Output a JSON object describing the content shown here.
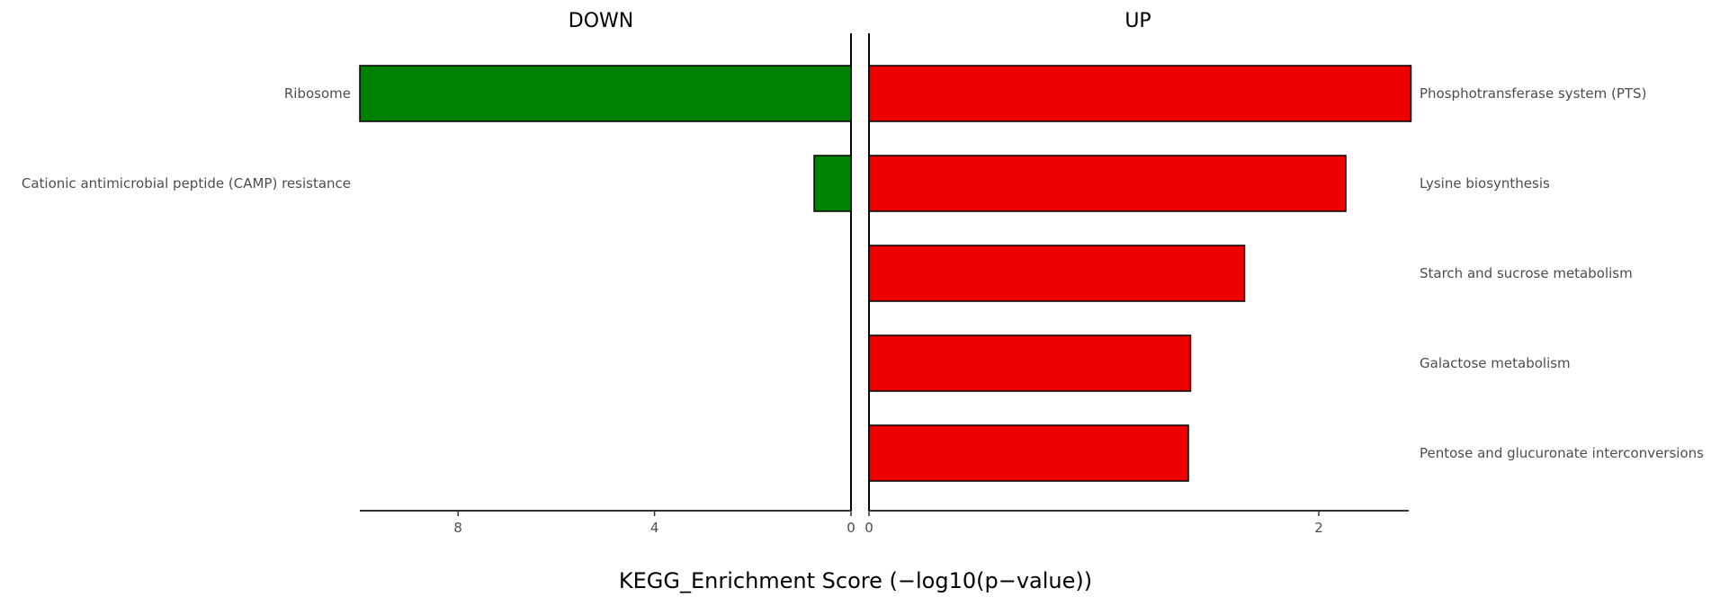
{
  "chart_data": {
    "type": "bar",
    "orientation": "horizontal",
    "xlabel": "KEGG_Enrichment Score (−log10(p−value))",
    "grid": false,
    "panels": [
      {
        "name": "DOWN",
        "color": "#008000",
        "direction": "reversed",
        "xlim": [
          0,
          10
        ],
        "ticks": [
          "8",
          "4",
          "0"
        ],
        "tick_values": [
          8,
          4,
          0
        ],
        "categories": [
          "Ribosome",
          "Cationic antimicrobial peptide (CAMP) resistance"
        ],
        "values": [
          10.0,
          0.75
        ]
      },
      {
        "name": "UP",
        "color": "#ee0000",
        "direction": "normal",
        "xlim": [
          0,
          2.4
        ],
        "ticks": [
          "0",
          "2"
        ],
        "tick_values": [
          0,
          2
        ],
        "categories": [
          "Phosphotransferase system (PTS)",
          "Lysine biosynthesis",
          "Starch and sucrose metabolism",
          "Galactose metabolism",
          "Pentose and glucuronate interconversions"
        ],
        "values": [
          2.41,
          2.12,
          1.67,
          1.43,
          1.42
        ]
      }
    ]
  }
}
